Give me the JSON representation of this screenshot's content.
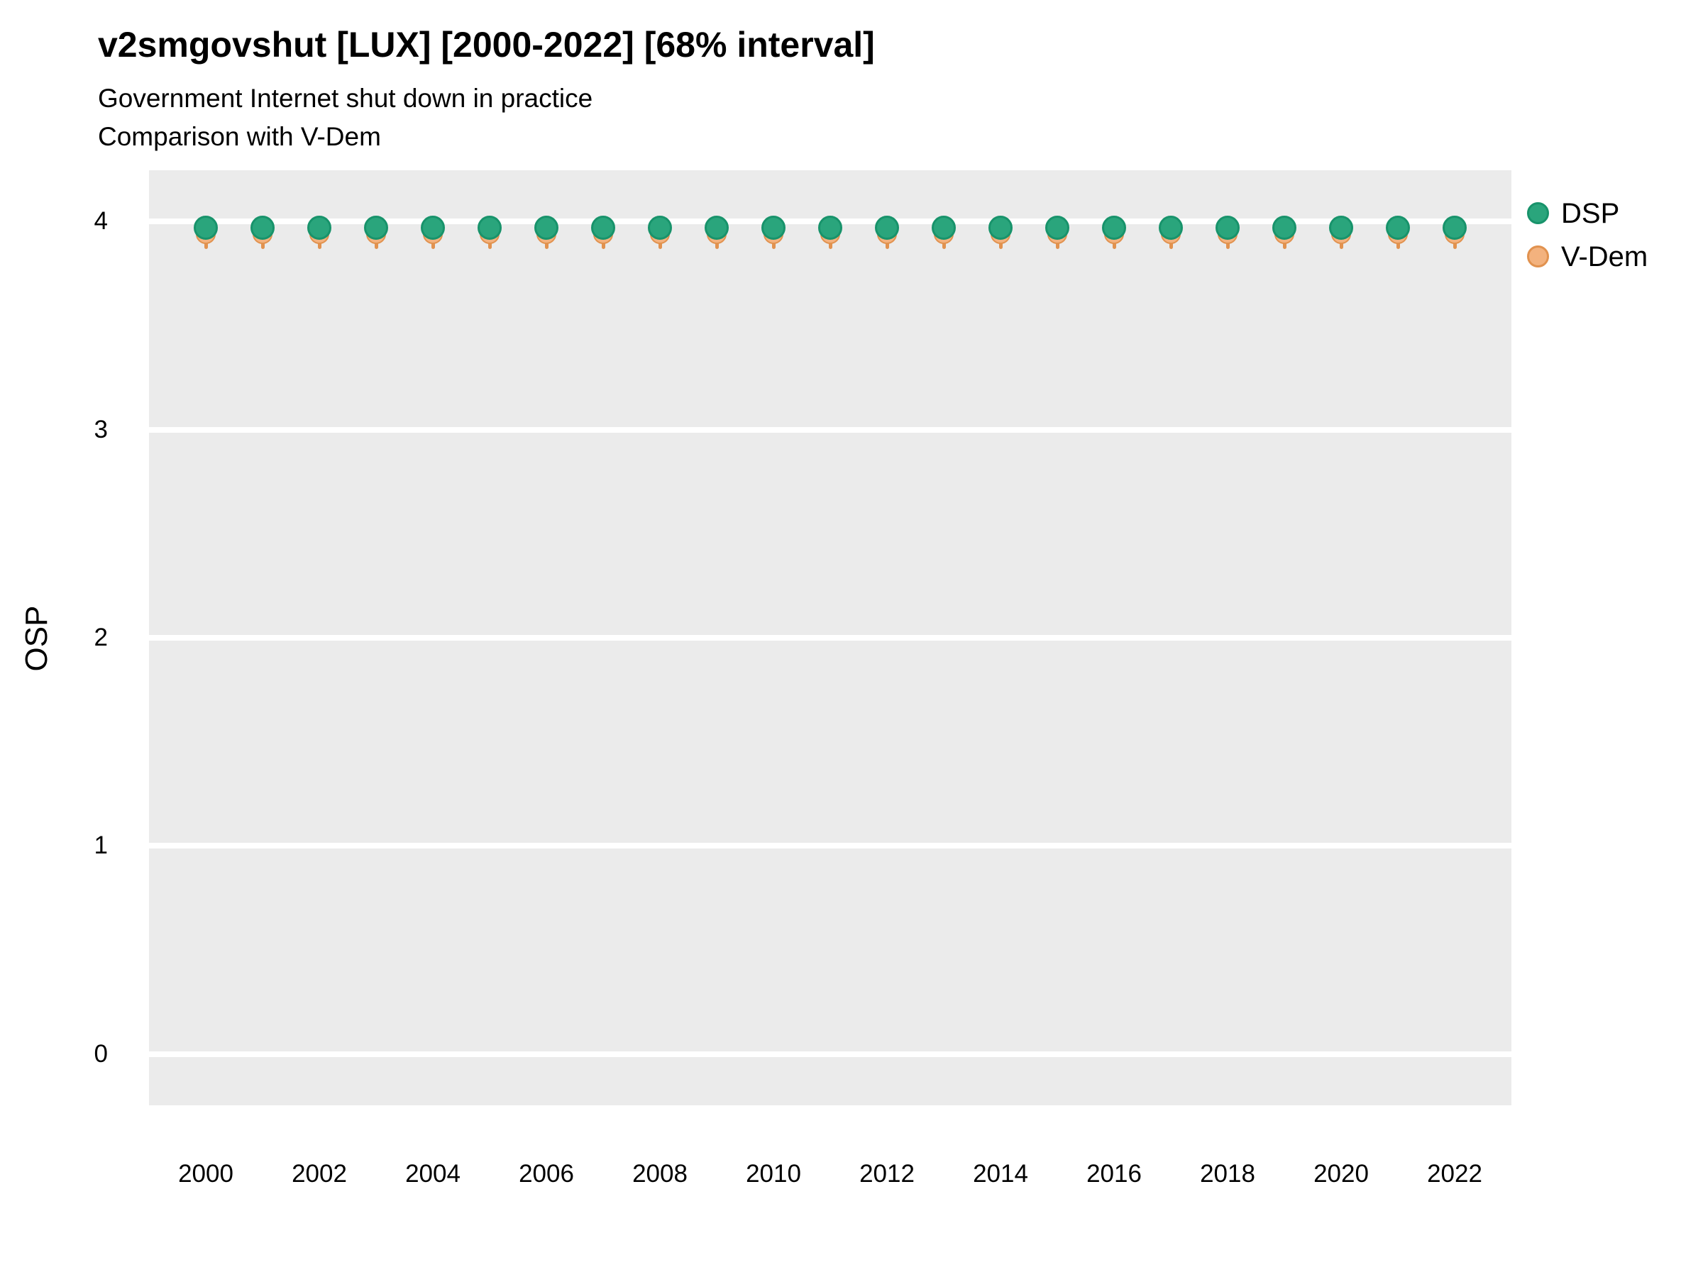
{
  "header": {
    "title": "v2smgovshut [LUX] [2000-2022] [68% interval]",
    "subtitle1": "Government Internet shut down in practice",
    "subtitle2": "Comparison with V-Dem"
  },
  "axes": {
    "y_label": "OSP",
    "y_tick_labels": [
      "0",
      "1",
      "2",
      "3",
      "4"
    ],
    "y_tick_values": [
      0,
      1,
      2,
      3,
      4
    ],
    "x_tick_labels": [
      "2000",
      "2002",
      "2004",
      "2006",
      "2008",
      "2010",
      "2012",
      "2014",
      "2016",
      "2018",
      "2020",
      "2022"
    ],
    "x_tick_values": [
      2000,
      2002,
      2004,
      2006,
      2008,
      2010,
      2012,
      2014,
      2016,
      2018,
      2020,
      2022
    ]
  },
  "legend": {
    "position": "right-top",
    "items": [
      {
        "label": "DSP",
        "fill": "#2aa57c",
        "stroke": "#18936b"
      },
      {
        "label": "V-Dem",
        "fill": "#f3b27e",
        "stroke": "#e1924f"
      }
    ]
  },
  "colors": {
    "panel_background": "#ebebeb",
    "gridline": "#ffffff",
    "text": "#000000",
    "dsp_fill": "#2aa57c",
    "dsp_stroke": "#18936b",
    "vdem_fill": "#f3b27e",
    "vdem_stroke": "#e1924f"
  },
  "chart_data": {
    "type": "scatter",
    "title": "v2smgovshut [LUX] [2000-2022] [68% interval]",
    "subtitle": "Government Internet shut down in practice",
    "subtitle2": "Comparison with V-Dem",
    "xlabel": "",
    "ylabel": "OSP",
    "xlim": [
      1999,
      2023
    ],
    "ylim": [
      -0.25,
      4.25
    ],
    "grid": "horizontal major gridlines only, white on gray panel",
    "legend_position": "right-top",
    "x": [
      2000,
      2001,
      2002,
      2003,
      2004,
      2005,
      2006,
      2007,
      2008,
      2009,
      2010,
      2011,
      2012,
      2013,
      2014,
      2015,
      2016,
      2017,
      2018,
      2019,
      2020,
      2021,
      2022
    ],
    "series": [
      {
        "name": "DSP",
        "marker": "circle",
        "values": [
          3.97,
          3.97,
          3.97,
          3.97,
          3.97,
          3.97,
          3.97,
          3.97,
          3.97,
          3.97,
          3.97,
          3.97,
          3.97,
          3.97,
          3.97,
          3.97,
          3.97,
          3.97,
          3.97,
          3.97,
          3.97,
          3.97,
          3.97
        ]
      },
      {
        "name": "V-Dem",
        "marker": "circle",
        "values": [
          3.94,
          3.94,
          3.94,
          3.94,
          3.94,
          3.94,
          3.94,
          3.94,
          3.94,
          3.94,
          3.94,
          3.94,
          3.94,
          3.94,
          3.94,
          3.94,
          3.94,
          3.94,
          3.94,
          3.94,
          3.94,
          3.94,
          3.94
        ],
        "interval_68_low": [
          3.87,
          3.87,
          3.87,
          3.87,
          3.87,
          3.87,
          3.87,
          3.87,
          3.87,
          3.87,
          3.87,
          3.87,
          3.87,
          3.87,
          3.87,
          3.87,
          3.87,
          3.87,
          3.87,
          3.87,
          3.87,
          3.87,
          3.87
        ],
        "interval_68_high": [
          4.0,
          4.0,
          4.0,
          4.0,
          4.0,
          4.0,
          4.0,
          4.0,
          4.0,
          4.0,
          4.0,
          4.0,
          4.0,
          4.0,
          4.0,
          4.0,
          4.0,
          4.0,
          4.0,
          4.0,
          4.0,
          4.0,
          4.0
        ]
      }
    ]
  }
}
